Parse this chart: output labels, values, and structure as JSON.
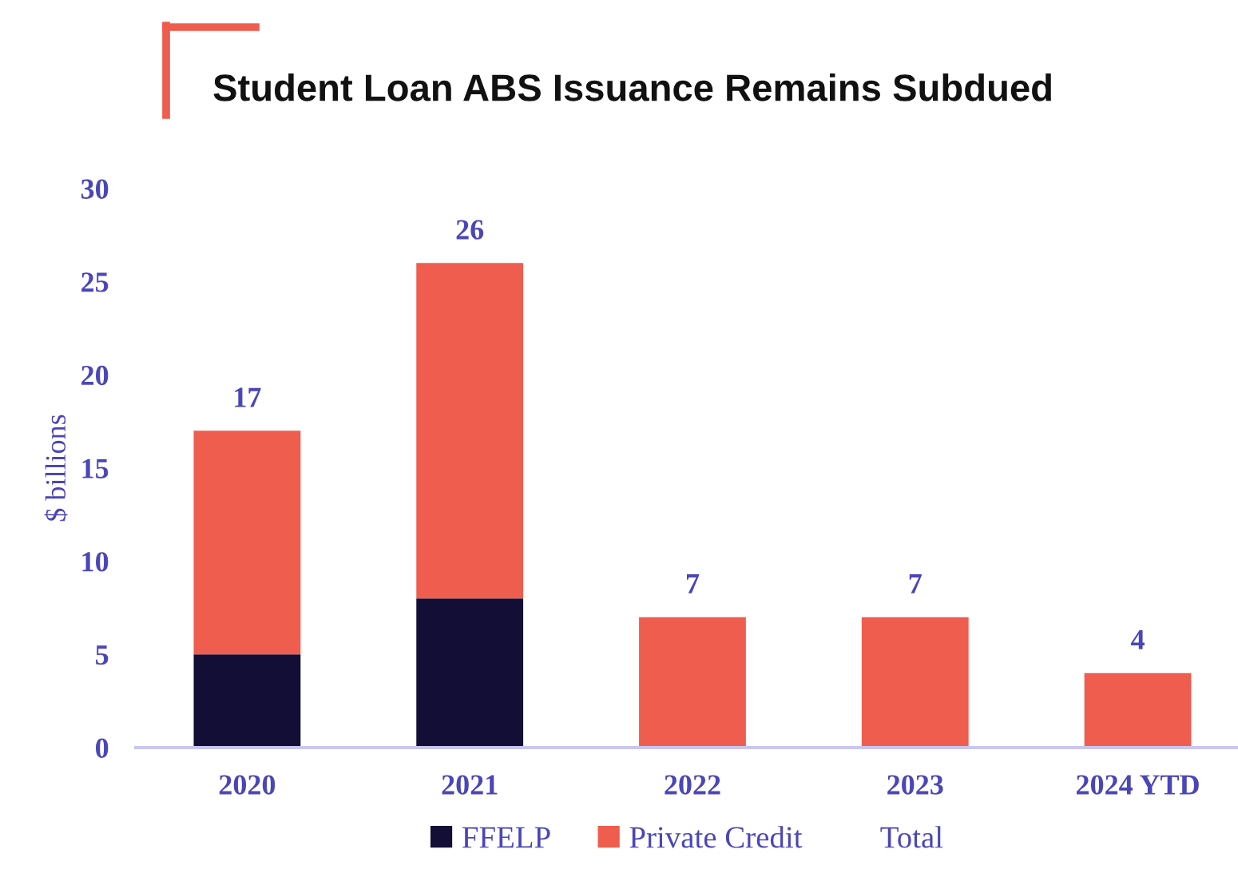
{
  "chart_data": {
    "type": "bar",
    "title": "Student Loan ABS Issuance Remains Subdued",
    "ylabel": "$ billions",
    "categories": [
      "2020",
      "2021",
      "2022",
      "2023",
      "2024 YTD"
    ],
    "stacked": true,
    "series": [
      {
        "name": "FFELP",
        "color": "#120e36",
        "values": [
          5,
          8,
          0,
          0,
          0
        ]
      },
      {
        "name": "Private Credit",
        "color": "#ee5d4e",
        "values": [
          12,
          18,
          7,
          7,
          4
        ]
      },
      {
        "name": "Total",
        "type": "line",
        "values": [
          null,
          null,
          null,
          null,
          null
        ]
      }
    ],
    "totals": [
      "17",
      "26",
      "7",
      "7",
      "4"
    ],
    "ylim": [
      0,
      30
    ],
    "yticks": [
      0,
      5,
      10,
      15,
      20,
      25,
      30
    ],
    "grid": false,
    "legend": "bottom"
  }
}
